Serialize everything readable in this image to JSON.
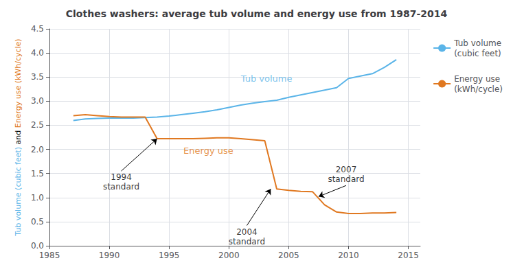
{
  "chart_data": {
    "type": "line",
    "title": "Clothes washers: average tub volume and energy use from 1987-2014",
    "ylabel": [
      {
        "text": "Tub volume (cubic feet)",
        "color": "#5ab4e8"
      },
      {
        "text": "and",
        "color": "#000000"
      },
      {
        "text": "Energy use",
        "color": "#e07820"
      },
      {
        "text": "(kWh/cycle)",
        "color": "#e07820"
      }
    ],
    "x": [
      1987,
      1988,
      1989,
      1990,
      1991,
      1992,
      1993,
      1994,
      1995,
      1996,
      1997,
      1998,
      1999,
      2000,
      2001,
      2002,
      2003,
      2004,
      2005,
      2006,
      2007,
      2008,
      2009,
      2010,
      2011,
      2012,
      2013,
      2014
    ],
    "series": [
      {
        "name": "Tub volume\n(cubic feet)",
        "color": "#5ab4e8",
        "values": [
          2.6,
          2.63,
          2.64,
          2.65,
          2.65,
          2.65,
          2.66,
          2.67,
          2.69,
          2.72,
          2.75,
          2.78,
          2.82,
          2.87,
          2.92,
          2.96,
          2.99,
          3.02,
          3.08,
          3.13,
          3.18,
          3.23,
          3.28,
          3.47,
          3.52,
          3.57,
          3.7,
          3.86
        ]
      },
      {
        "name": "Energy use\n(kWh/cycle)",
        "color": "#e07820",
        "values": [
          2.7,
          2.72,
          2.7,
          2.68,
          2.67,
          2.67,
          2.67,
          2.22,
          2.22,
          2.22,
          2.22,
          2.23,
          2.24,
          2.24,
          2.22,
          2.2,
          2.18,
          1.18,
          1.15,
          1.13,
          1.12,
          0.85,
          0.7,
          0.67,
          0.67,
          0.68,
          0.68,
          0.69
        ]
      }
    ],
    "xlim": [
      1985,
      2016
    ],
    "xticks": [
      1985,
      1990,
      1995,
      2000,
      2005,
      2010,
      2015
    ],
    "ylim": [
      0.0,
      4.5
    ],
    "yticks": [
      {
        "value": 0.0,
        "label": "0.0"
      },
      0.5,
      {
        "value": 1.0,
        "label": "1.0"
      },
      1.5,
      {
        "value": 2.0,
        "label": "2.0"
      },
      2.5,
      {
        "value": 3.0,
        "label": "3.0"
      },
      3.5,
      {
        "value": 4.0,
        "label": "4.0"
      },
      4.5
    ],
    "grid": true,
    "legend": "right",
    "annotations": [
      {
        "text": "Tub volume",
        "text_x": 2001,
        "text_y": 3.38,
        "color": "#5ab4e8"
      },
      {
        "text": "Energy use",
        "text_x": 1996.2,
        "text_y": 1.88,
        "color": "#e07820"
      },
      {
        "text": "1994\nstandard",
        "x": 1994,
        "y": 2.22,
        "text_x": 1991.0,
        "text_y": 1.55,
        "color": "#000000"
      },
      {
        "text": "2004\nstandard",
        "x": 2003.5,
        "y": 1.18,
        "text_x": 2001.5,
        "text_y": 0.42,
        "color": "#000000"
      },
      {
        "text": "2007\nstandard",
        "x": 2007.5,
        "y": 1.02,
        "text_x": 2009.8,
        "text_y": 1.25,
        "color": "#000000"
      }
    ]
  }
}
